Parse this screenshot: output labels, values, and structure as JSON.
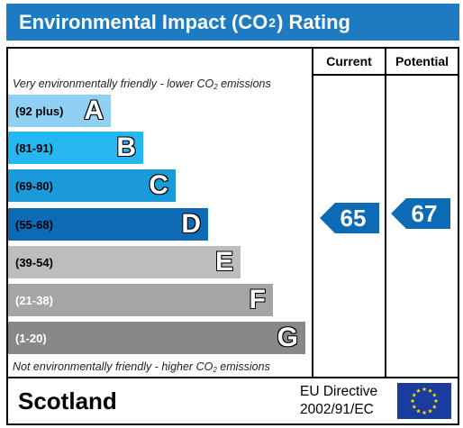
{
  "title_pre": "Environmental Impact (CO",
  "title_sub": "2",
  "title_post": ") Rating",
  "columns": {
    "current": "Current",
    "potential": "Potential"
  },
  "top_note": {
    "pre": "Very environmentally friendly - lower CO",
    "sub": "2",
    "post": " emissions"
  },
  "bottom_note": {
    "pre": "Not environmentally friendly - higher CO",
    "sub": "2",
    "post": " emissions"
  },
  "bands": [
    {
      "range": "(92 plus)",
      "letter": "A",
      "color": "#8fd0f3",
      "text_color": "#000000"
    },
    {
      "range": "(81-91)",
      "letter": "B",
      "color": "#26b7f0",
      "text_color": "#000000"
    },
    {
      "range": "(69-80)",
      "letter": "C",
      "color": "#1a9ad9",
      "text_color": "#000000"
    },
    {
      "range": "(55-68)",
      "letter": "D",
      "color": "#0d6ab5",
      "text_color": "#000000"
    },
    {
      "range": "(39-54)",
      "letter": "E",
      "color": "#bdbdbd",
      "text_color": "#000000"
    },
    {
      "range": "(21-38)",
      "letter": "F",
      "color": "#a5a5a5",
      "text_color": "#ffffff"
    },
    {
      "range": "(1-20)",
      "letter": "G",
      "color": "#888888",
      "text_color": "#ffffff"
    }
  ],
  "current_rating": {
    "value": "65",
    "band": "D",
    "color": "#0d6ab5"
  },
  "potential_rating": {
    "value": "67",
    "band": "D",
    "color": "#0d6ab5"
  },
  "footer": {
    "country": "Scotland",
    "directive_line1": "EU Directive",
    "directive_line2": "2002/91/EC",
    "flag_icon": "eu-flag-icon"
  },
  "colors": {
    "header": "#1c7bc1",
    "flag_blue": "#1a3c9e",
    "flag_star": "#ffdd00"
  }
}
